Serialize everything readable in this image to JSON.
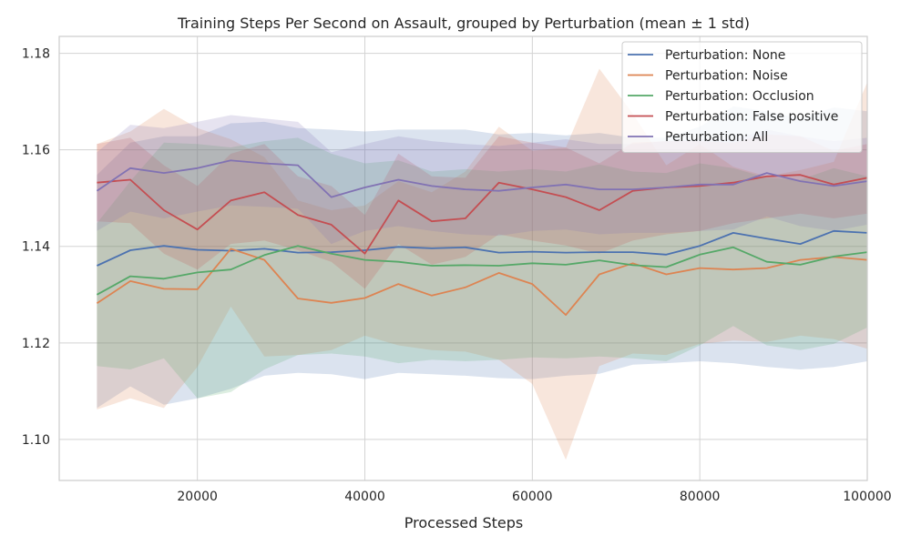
{
  "chart_data": {
    "type": "line",
    "title": "Training Steps Per Second on Assault, grouped by Perturbation (mean ± 1 std)",
    "xlabel": "Processed Steps",
    "ylabel": "",
    "xlim": [
      3500,
      100000
    ],
    "ylim": [
      1.0915,
      1.1835
    ],
    "xticks": [
      20000,
      40000,
      60000,
      80000,
      100000
    ],
    "xtick_labels": [
      "20000",
      "40000",
      "60000",
      "80000",
      "100000"
    ],
    "yticks": [
      1.1,
      1.12,
      1.14,
      1.16,
      1.18
    ],
    "ytick_labels": [
      "1.10",
      "1.12",
      "1.14",
      "1.16",
      "1.18"
    ],
    "grid": true,
    "legend_position": "top-right",
    "x": [
      8000,
      12000,
      16000,
      20000,
      24000,
      28000,
      32000,
      36000,
      40000,
      44000,
      48000,
      52000,
      56000,
      60000,
      64000,
      68000,
      72000,
      76000,
      80000,
      84000,
      88000,
      92000,
      96000,
      100000
    ],
    "series": [
      {
        "name": "Perturbation: None",
        "color": "#4c72b0",
        "mean": [
          1.136,
          1.1392,
          1.1401,
          1.1393,
          1.1391,
          1.1395,
          1.1387,
          1.1388,
          1.1392,
          1.1399,
          1.1396,
          1.1398,
          1.1387,
          1.1389,
          1.1387,
          1.1388,
          1.1388,
          1.1383,
          1.1401,
          1.1428,
          1.1416,
          1.1405,
          1.1432,
          1.1428
        ],
        "lower": [
          1.1065,
          1.111,
          1.1072,
          1.1085,
          1.1105,
          1.1132,
          1.1138,
          1.1135,
          1.1125,
          1.1138,
          1.1135,
          1.1132,
          1.1127,
          1.1125,
          1.1132,
          1.1136,
          1.1155,
          1.1158,
          1.1162,
          1.1158,
          1.115,
          1.1145,
          1.115,
          1.1162
        ],
        "upper": [
          1.1548,
          1.1615,
          1.1628,
          1.1628,
          1.1655,
          1.1658,
          1.1645,
          1.1642,
          1.1638,
          1.1642,
          1.1642,
          1.1642,
          1.1632,
          1.1635,
          1.163,
          1.1635,
          1.1625,
          1.1625,
          1.1648,
          1.169,
          1.168,
          1.1665,
          1.1688,
          1.168
        ]
      },
      {
        "name": "Perturbation: Noise",
        "color": "#dd8452",
        "mean": [
          1.1282,
          1.1328,
          1.1312,
          1.1311,
          1.1395,
          1.1372,
          1.1292,
          1.1283,
          1.1293,
          1.1322,
          1.1298,
          1.1315,
          1.1345,
          1.1322,
          1.1258,
          1.1342,
          1.1365,
          1.1342,
          1.1355,
          1.1352,
          1.1355,
          1.1372,
          1.1378,
          1.1372
        ],
        "lower": [
          1.1062,
          1.1085,
          1.1065,
          1.115,
          1.1275,
          1.1172,
          1.1175,
          1.1185,
          1.1215,
          1.1195,
          1.1185,
          1.1182,
          1.1165,
          1.1115,
          1.0958,
          1.1152,
          1.1178,
          1.1175,
          1.1198,
          1.1205,
          1.1202,
          1.1215,
          1.1208,
          1.1188
        ],
        "upper": [
          1.1612,
          1.1638,
          1.1685,
          1.1645,
          1.1622,
          1.1585,
          1.1495,
          1.1475,
          1.1485,
          1.1535,
          1.1512,
          1.1555,
          1.1648,
          1.1598,
          1.1605,
          1.1768,
          1.1675,
          1.1568,
          1.1612,
          1.1565,
          1.1545,
          1.1558,
          1.1575,
          1.174
        ]
      },
      {
        "name": "Perturbation: Occlusion",
        "color": "#55a868",
        "mean": [
          1.13,
          1.1338,
          1.1333,
          1.1346,
          1.1352,
          1.1382,
          1.1401,
          1.1385,
          1.1372,
          1.1368,
          1.136,
          1.1361,
          1.136,
          1.1365,
          1.1362,
          1.1371,
          1.1361,
          1.1357,
          1.1383,
          1.1398,
          1.1368,
          1.1362,
          1.1379,
          1.1388
        ],
        "lower": [
          1.1152,
          1.1145,
          1.1168,
          1.1085,
          1.1098,
          1.1145,
          1.1175,
          1.1178,
          1.1172,
          1.1158,
          1.1165,
          1.1162,
          1.1165,
          1.117,
          1.1168,
          1.1172,
          1.1168,
          1.1162,
          1.1195,
          1.1235,
          1.1195,
          1.1185,
          1.1198,
          1.1232
        ],
        "upper": [
          1.1448,
          1.1535,
          1.1615,
          1.1612,
          1.1605,
          1.1618,
          1.1625,
          1.1592,
          1.1572,
          1.1578,
          1.1555,
          1.156,
          1.1555,
          1.156,
          1.1555,
          1.157,
          1.1555,
          1.1552,
          1.1572,
          1.1562,
          1.1542,
          1.1538,
          1.1562,
          1.1545
        ]
      },
      {
        "name": "Perturbation: False positive",
        "color": "#c44e52",
        "mean": [
          1.1532,
          1.1538,
          1.1475,
          1.1435,
          1.1495,
          1.1512,
          1.1465,
          1.1445,
          1.1385,
          1.1495,
          1.1452,
          1.1458,
          1.1532,
          1.1518,
          1.1502,
          1.1475,
          1.1515,
          1.1522,
          1.1525,
          1.1532,
          1.1545,
          1.1548,
          1.1528,
          1.1542
        ],
        "lower": [
          1.1452,
          1.1448,
          1.1385,
          1.1352,
          1.1405,
          1.1412,
          1.1392,
          1.1368,
          1.1312,
          1.1405,
          1.1362,
          1.1378,
          1.1425,
          1.1412,
          1.1402,
          1.1385,
          1.1412,
          1.1425,
          1.1432,
          1.1448,
          1.1458,
          1.1468,
          1.1458,
          1.1468
        ],
        "upper": [
          1.1612,
          1.1625,
          1.1568,
          1.1525,
          1.1592,
          1.1612,
          1.1545,
          1.1525,
          1.1465,
          1.1592,
          1.1545,
          1.1542,
          1.1628,
          1.1615,
          1.1605,
          1.1572,
          1.1615,
          1.1618,
          1.1618,
          1.1615,
          1.1632,
          1.1628,
          1.1598,
          1.1612
        ]
      },
      {
        "name": "Perturbation: All",
        "color": "#8172b3",
        "mean": [
          1.1515,
          1.1562,
          1.1552,
          1.1562,
          1.1578,
          1.1572,
          1.1568,
          1.1502,
          1.1522,
          1.1538,
          1.1525,
          1.1518,
          1.1515,
          1.1522,
          1.1528,
          1.1518,
          1.1518,
          1.1522,
          1.1528,
          1.1528,
          1.1552,
          1.1535,
          1.1525,
          1.1535
        ],
        "lower": [
          1.1432,
          1.1472,
          1.1458,
          1.1472,
          1.1485,
          1.1482,
          1.1478,
          1.1405,
          1.1432,
          1.1442,
          1.1432,
          1.1425,
          1.1422,
          1.1432,
          1.1435,
          1.1425,
          1.1428,
          1.1428,
          1.1432,
          1.1435,
          1.1462,
          1.1442,
          1.1432,
          1.1445
        ],
        "upper": [
          1.1595,
          1.1652,
          1.1645,
          1.1658,
          1.1672,
          1.1665,
          1.1658,
          1.1595,
          1.1612,
          1.1628,
          1.1618,
          1.1612,
          1.1608,
          1.1615,
          1.1622,
          1.1612,
          1.1612,
          1.1618,
          1.1622,
          1.1622,
          1.1642,
          1.1628,
          1.1618,
          1.1625
        ]
      }
    ]
  }
}
